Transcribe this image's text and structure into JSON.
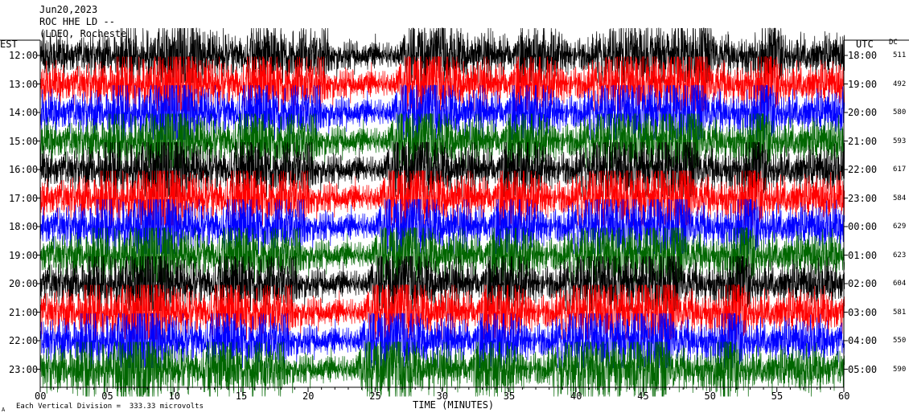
{
  "header": {
    "line1": "Jun20,2023",
    "line2": "ROC HHE LD --",
    "line3": "(LDEO, Rocheste"
  },
  "left_axis_title": "EST",
  "right_axis_title": "UTC",
  "dc_title": "DC",
  "footer": {
    "left_mark": "A",
    "note": "Each Vertical Division =  333.33 microvolts"
  },
  "chart_data": {
    "type": "line",
    "title": "",
    "xlabel": "TIME (MINUTES)",
    "ylabel": "",
    "xlim": [
      0,
      60
    ],
    "x_ticks": [
      "00",
      "05",
      "10",
      "15",
      "20",
      "25",
      "30",
      "35",
      "40",
      "45",
      "50",
      "55",
      "60"
    ],
    "trace_colors": [
      "#000000",
      "#ff0000",
      "#0000ff",
      "#006600"
    ],
    "rows": [
      {
        "est": "12:00",
        "utc": "18:00",
        "dc": "511"
      },
      {
        "est": "13:00",
        "utc": "19:00",
        "dc": "492"
      },
      {
        "est": "14:00",
        "utc": "20:00",
        "dc": "580"
      },
      {
        "est": "15:00",
        "utc": "21:00",
        "dc": "593"
      },
      {
        "est": "16:00",
        "utc": "22:00",
        "dc": "617"
      },
      {
        "est": "17:00",
        "utc": "23:00",
        "dc": "584"
      },
      {
        "est": "18:00",
        "utc": "00:00",
        "dc": "629"
      },
      {
        "est": "19:00",
        "utc": "01:00",
        "dc": "623"
      },
      {
        "est": "20:00",
        "utc": "02:00",
        "dc": "604"
      },
      {
        "est": "21:00",
        "utc": "03:00",
        "dc": "581"
      },
      {
        "est": "22:00",
        "utc": "04:00",
        "dc": "550"
      },
      {
        "est": "23:00",
        "utc": "05:00",
        "dc": "590"
      }
    ]
  }
}
